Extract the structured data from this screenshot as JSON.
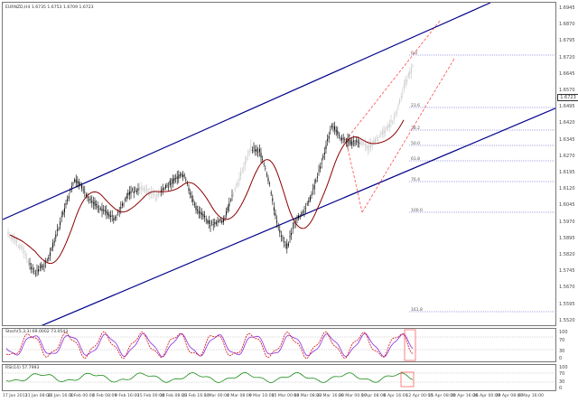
{
  "chart": {
    "title": "EURNZD,H4  1.6735 1.6753 1.6709 1.6723",
    "price_axis": [
      "1.6945",
      "1.6870",
      "1.6795",
      "1.6720",
      "1.6645",
      "1.6570",
      "1.6495",
      "1.6420",
      "1.6345",
      "1.6270",
      "1.6195",
      "1.6120",
      "1.6045",
      "1.5970",
      "1.5895",
      "1.5820",
      "1.5745",
      "1.5670",
      "1.5595",
      "1.5520"
    ],
    "current_price": "1.6723",
    "fib_levels": [
      "0.0",
      "23.6",
      "38.2",
      "50.0",
      "61.8",
      "76.4",
      "100.0",
      "161.8"
    ],
    "colors": {
      "channel": "#00008b",
      "ma": "#8b0000",
      "trend_dashed": "#ff3030",
      "fib": "#4a4acc",
      "candle_dark": "#000000",
      "candle_light": "#c8c8c8",
      "stoch_main": "#d01010",
      "stoch_signal": "#8a2be2",
      "rsi": "#1a8a1a"
    }
  },
  "stochastic": {
    "label": "Stoch(5,3,3) 69.0002 73.0543",
    "levels": [
      "100",
      "70",
      "30",
      "0"
    ]
  },
  "rsi": {
    "label": "RSI(14) 57.7993",
    "levels": [
      "100",
      "70",
      "30",
      "0"
    ]
  },
  "x_axis": [
    "17 Jan 2011",
    "21 Jan 08:00",
    "26 Jan 16:00",
    "1 Feb 00:00",
    "4 Feb 08:00",
    "9 Feb 16:00",
    "15 Feb 00:00",
    "18 Feb 08:00",
    "23 Feb 16:00",
    "1 Mar 00:00",
    "4 Mar 08:00",
    "9 Mar 16:00",
    "15 Mar 00:00",
    "18 Mar 08:00",
    "23 Mar 16:00",
    "29 Mar 00:00",
    "1 Apr 08:00",
    "6 Apr 16:00",
    "12 Apr 00:00",
    "15 Apr 08:00",
    "20 Apr 16:00",
    "26 Apr 00:00",
    "29 Apr 08:00",
    "4 May 16:00"
  ]
}
